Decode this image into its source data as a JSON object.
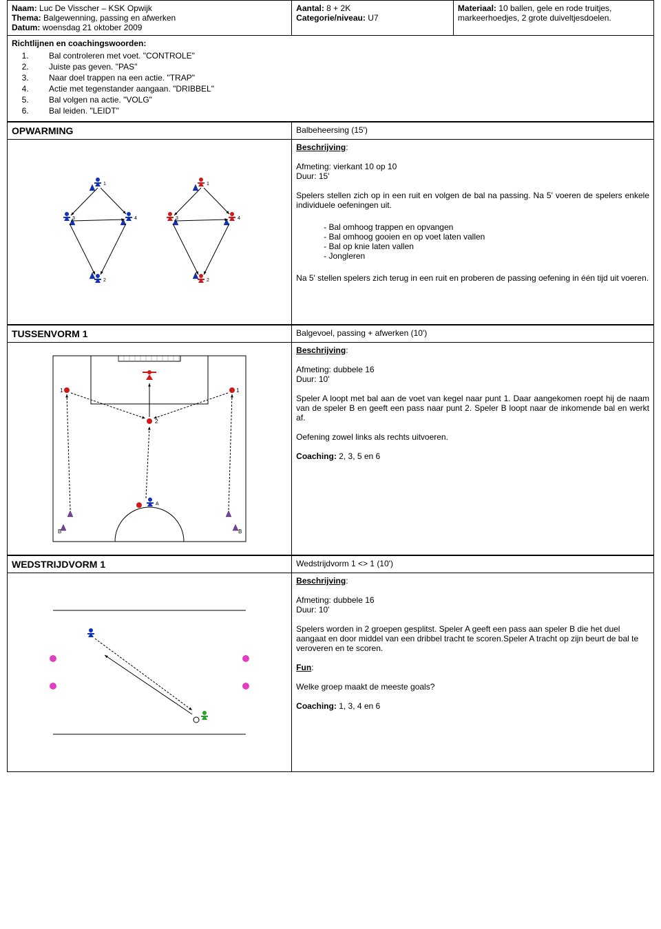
{
  "header": {
    "naam_label": "Naam:",
    "naam_value": "Luc De Visscher – KSK Opwijk",
    "thema_label": "Thema:",
    "thema_value": "Balgewenning, passing en afwerken",
    "datum_label": "Datum:",
    "datum_value": "woensdag 21 oktober 2009",
    "aantal_label": "Aantal:",
    "aantal_value": "8 + 2K",
    "categorie_label": "Categorie/niveau:",
    "categorie_value": "U7",
    "materiaal_label": "Materiaal:",
    "materiaal_value": "10 ballen, gele en rode truitjes, markeerhoedjes, 2 grote duiveltjesdoelen."
  },
  "guidelines": {
    "title": "Richtlijnen en coachingswoorden:",
    "items": [
      "Bal controleren met voet. \"CONTROLE\"",
      "Juiste pas geven. \"PAS\"",
      "Naar doel trappen na een actie. \"TRAP\"",
      "Actie met tegenstander aangaan. \"DRIBBEL\"",
      "Bal volgen na actie. \"VOLG\"",
      "Bal leiden. \"LEIDT\""
    ]
  },
  "opwarming": {
    "title": "OPWARMING",
    "subtitle": "Balbeheersing (15')",
    "beschrijving_label": "Beschrijving",
    "afmeting": "Afmeting: vierkant 10 op 10",
    "duur": "Duur: 15'",
    "p1": "Spelers stellen zich op in een ruit en volgen de bal na passing. Na 5' voeren de spelers enkele individuele oefeningen uit.",
    "bullets": [
      "Bal omhoog trappen en opvangen",
      "Bal omhoog gooien en op voet laten vallen",
      "Bal op knie laten vallen",
      "Jongleren"
    ],
    "p2": "Na 5' stellen spelers zich terug in een ruit en proberen de passing oefening in één tijd uit voeren."
  },
  "tussenvorm": {
    "title": "TUSSENVORM 1",
    "subtitle": "Balgevoel, passing + afwerken (10')",
    "beschrijving_label": "Beschrijving",
    "afmeting": "Afmeting: dubbele 16",
    "duur": "Duur: 10'",
    "p1": "Speler A loopt met bal aan de voet van kegel naar punt 1. Daar aangekomen roept hij de naam van de speler B en geeft een pass naar punt 2. Speler B loopt naar de inkomende bal en werkt af.",
    "p2": "Oefening zowel links als rechts uitvoeren.",
    "coaching_label": "Coaching:",
    "coaching_value": "2, 3, 5 en 6"
  },
  "wedstrijdvorm": {
    "title": "WEDSTRIJDVORM 1",
    "subtitle": "Wedstrijdvorm 1 <> 1 (10')",
    "beschrijving_label": "Beschrijving",
    "afmeting": "Afmeting: dubbele 16",
    "duur": "Duur: 10'",
    "p1": "Spelers worden in 2 groepen gesplitst. Speler A geeft een pass aan speler B die het duel aangaat en door middel van een dribbel tracht te scoren.Speler A tracht op zijn beurt de bal te veroveren en te scoren.",
    "fun_label": "Fun",
    "fun_text": "Welke groep maakt de meeste goals?",
    "coaching_label": "Coaching:",
    "coaching_value": "1, 3, 4 en 6"
  },
  "diagram1": {
    "groups": [
      {
        "color": "#1030c0",
        "ox": 0
      },
      {
        "color": "#d01818",
        "ox": 150
      }
    ],
    "cone": "#1030c0"
  },
  "diagram2": {
    "keeper": "#d01818",
    "cone_purple": "#7a3fa0",
    "dot_red": "#d01818",
    "player_blue": "#1030c0"
  },
  "diagram3": {
    "player_blue": "#1030c0",
    "player_green": "#2aa02a",
    "dot_pink": "#e040c0"
  }
}
